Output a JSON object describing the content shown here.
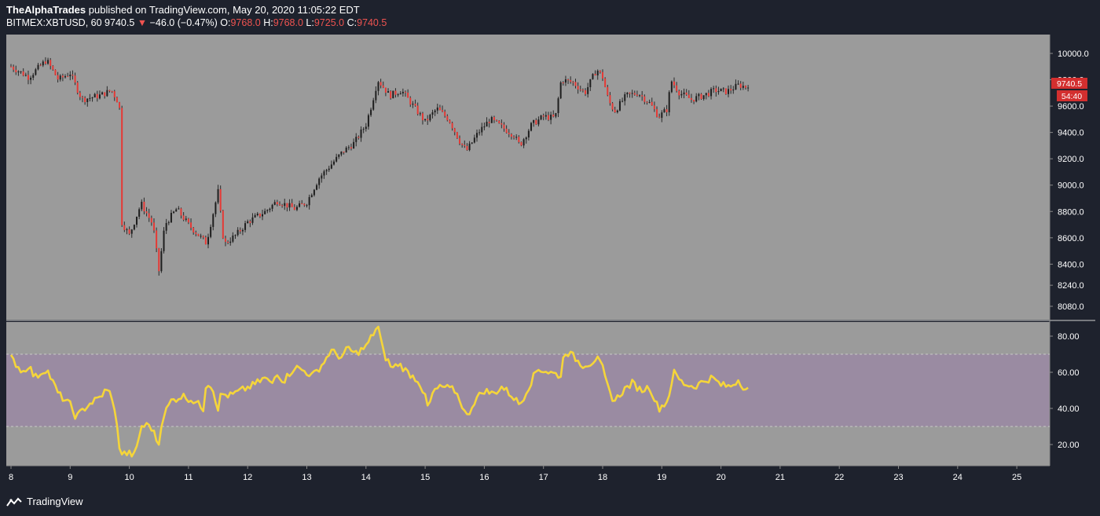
{
  "header": {
    "publisher": "TheAlphaTrades",
    "published_text": "published on TradingView.com, May 20, 2020 11:05:22 EDT",
    "symbol": "BITMEX:XBTUSD, 60",
    "last": "9740.5",
    "change_arrow": "▼",
    "change": "−46.0 (−0.47%)",
    "o_label": "O:",
    "o_value": "9768.0",
    "h_label": "H:",
    "h_value": "9768.0",
    "l_label": "L:",
    "l_value": "9725.0",
    "c_label": "C:",
    "c_value": "9740.5"
  },
  "price_badge": {
    "value": "9740.5",
    "countdown": "54:40"
  },
  "footer": {
    "brand": "TradingView"
  },
  "colors": {
    "background": "#1e222d",
    "pane": "#9b9b9b",
    "rsi_band": "#9a8ba2",
    "rsi_line": "#f5d53a",
    "down": "#e53935",
    "up": "#1e1e1e",
    "badge": "#d32f2f"
  },
  "chart_data": [
    {
      "type": "candlestick",
      "title": "BITMEX:XBTUSD, 60",
      "x_ticks": [
        "8",
        "9",
        "10",
        "11",
        "12",
        "13",
        "14",
        "15",
        "16",
        "17",
        "18",
        "19",
        "20",
        "21",
        "22",
        "23",
        "24",
        "25"
      ],
      "y_ticks": [
        "10000.0",
        "9800.0",
        "9600.0",
        "9400.0",
        "9200.0",
        "9000.0",
        "8800.0",
        "8600.0",
        "8400.0",
        "8240.0",
        "8080.0"
      ],
      "ylim": [
        8000,
        10100
      ],
      "close_path": [
        [
          8.0,
          9900
        ],
        [
          8.3,
          9820
        ],
        [
          8.6,
          9950
        ],
        [
          8.8,
          9800
        ],
        [
          9.0,
          9850
        ],
        [
          9.2,
          9650
        ],
        [
          9.5,
          9680
        ],
        [
          9.7,
          9720
        ],
        [
          9.8,
          9640
        ],
        [
          9.85,
          9550
        ],
        [
          9.87,
          8720
        ],
        [
          10.0,
          8620
        ],
        [
          10.2,
          8860
        ],
        [
          10.4,
          8700
        ],
        [
          10.5,
          8350
        ],
        [
          10.6,
          8700
        ],
        [
          10.8,
          8820
        ],
        [
          11.0,
          8700
        ],
        [
          11.3,
          8560
        ],
        [
          11.5,
          8950
        ],
        [
          11.6,
          8550
        ],
        [
          11.8,
          8620
        ],
        [
          12.0,
          8720
        ],
        [
          12.3,
          8800
        ],
        [
          12.5,
          8880
        ],
        [
          12.8,
          8820
        ],
        [
          13.0,
          8870
        ],
        [
          13.2,
          9050
        ],
        [
          13.4,
          9150
        ],
        [
          13.6,
          9250
        ],
        [
          13.8,
          9320
        ],
        [
          14.0,
          9460
        ],
        [
          14.1,
          9620
        ],
        [
          14.2,
          9800
        ],
        [
          14.4,
          9680
        ],
        [
          14.6,
          9720
        ],
        [
          14.8,
          9600
        ],
        [
          15.0,
          9480
        ],
        [
          15.2,
          9580
        ],
        [
          15.4,
          9500
        ],
        [
          15.6,
          9320
        ],
        [
          15.7,
          9260
        ],
        [
          15.9,
          9400
        ],
        [
          16.1,
          9500
        ],
        [
          16.3,
          9440
        ],
        [
          16.5,
          9380
        ],
        [
          16.6,
          9300
        ],
        [
          16.8,
          9460
        ],
        [
          17.0,
          9520
        ],
        [
          17.2,
          9510
        ],
        [
          17.3,
          9800
        ],
        [
          17.5,
          9780
        ],
        [
          17.7,
          9700
        ],
        [
          17.9,
          9880
        ],
        [
          18.0,
          9820
        ],
        [
          18.1,
          9640
        ],
        [
          18.2,
          9560
        ],
        [
          18.4,
          9680
        ],
        [
          18.6,
          9700
        ],
        [
          18.8,
          9620
        ],
        [
          18.95,
          9520
        ],
        [
          19.1,
          9580
        ],
        [
          19.15,
          9800
        ],
        [
          19.3,
          9700
        ],
        [
          19.5,
          9650
        ],
        [
          19.7,
          9680
        ],
        [
          19.9,
          9720
        ],
        [
          20.1,
          9710
        ],
        [
          20.3,
          9760
        ],
        [
          20.48,
          9740
        ]
      ],
      "last_price": 9740.5
    },
    {
      "type": "line",
      "series": [
        {
          "values": [
            [
              8.0,
              68
            ],
            [
              8.2,
              60
            ],
            [
              8.3,
              64
            ],
            [
              8.4,
              57
            ],
            [
              8.6,
              62
            ],
            [
              8.8,
              48
            ],
            [
              8.9,
              45
            ],
            [
              9.0,
              42
            ],
            [
              9.1,
              35
            ],
            [
              9.3,
              42
            ],
            [
              9.5,
              46
            ],
            [
              9.6,
              50
            ],
            [
              9.7,
              48
            ],
            [
              9.75,
              38
            ],
            [
              9.8,
              28
            ],
            [
              9.85,
              15
            ],
            [
              10.0,
              15
            ],
            [
              10.1,
              14
            ],
            [
              10.2,
              30
            ],
            [
              10.35,
              31
            ],
            [
              10.5,
              20
            ],
            [
              10.55,
              34
            ],
            [
              10.7,
              44
            ],
            [
              10.9,
              47
            ],
            [
              11.1,
              44
            ],
            [
              11.25,
              40
            ],
            [
              11.3,
              55
            ],
            [
              11.4,
              52
            ],
            [
              11.5,
              40
            ],
            [
              11.55,
              48
            ],
            [
              11.7,
              47
            ],
            [
              11.9,
              50
            ],
            [
              12.1,
              53
            ],
            [
              12.3,
              57
            ],
            [
              12.4,
              53
            ],
            [
              12.5,
              60
            ],
            [
              12.6,
              55
            ],
            [
              12.8,
              63
            ],
            [
              13.0,
              60
            ],
            [
              13.1,
              58
            ],
            [
              13.3,
              66
            ],
            [
              13.4,
              72
            ],
            [
              13.6,
              68
            ],
            [
              13.7,
              74
            ],
            [
              13.8,
              70
            ],
            [
              14.0,
              74
            ],
            [
              14.1,
              80
            ],
            [
              14.2,
              86
            ],
            [
              14.3,
              70
            ],
            [
              14.45,
              62
            ],
            [
              14.55,
              65
            ],
            [
              14.7,
              60
            ],
            [
              14.9,
              55
            ],
            [
              15.0,
              46
            ],
            [
              15.05,
              40
            ],
            [
              15.15,
              50
            ],
            [
              15.3,
              52
            ],
            [
              15.5,
              50
            ],
            [
              15.6,
              44
            ],
            [
              15.7,
              35
            ],
            [
              15.85,
              45
            ],
            [
              16.0,
              50
            ],
            [
              16.15,
              48
            ],
            [
              16.3,
              52
            ],
            [
              16.5,
              46
            ],
            [
              16.6,
              42
            ],
            [
              16.75,
              52
            ],
            [
              16.9,
              62
            ],
            [
              17.1,
              60
            ],
            [
              17.3,
              58
            ],
            [
              17.35,
              72
            ],
            [
              17.5,
              69
            ],
            [
              17.65,
              64
            ],
            [
              17.8,
              65
            ],
            [
              17.9,
              68
            ],
            [
              18.0,
              62
            ],
            [
              18.1,
              50
            ],
            [
              18.2,
              44
            ],
            [
              18.35,
              50
            ],
            [
              18.5,
              54
            ],
            [
              18.65,
              50
            ],
            [
              18.8,
              52
            ],
            [
              18.9,
              43
            ],
            [
              18.95,
              40
            ],
            [
              19.1,
              44
            ],
            [
              19.2,
              60
            ],
            [
              19.35,
              54
            ],
            [
              19.55,
              52
            ],
            [
              19.7,
              55
            ],
            [
              19.85,
              57
            ],
            [
              20.0,
              53
            ],
            [
              20.15,
              52
            ],
            [
              20.3,
              56
            ],
            [
              20.4,
              51
            ],
            [
              20.48,
              50
            ]
          ]
        }
      ],
      "y_ticks": [
        "80.00",
        "60.00",
        "40.00",
        "20.00"
      ],
      "ylim": [
        10,
        90
      ],
      "bands": [
        30,
        70
      ]
    }
  ]
}
